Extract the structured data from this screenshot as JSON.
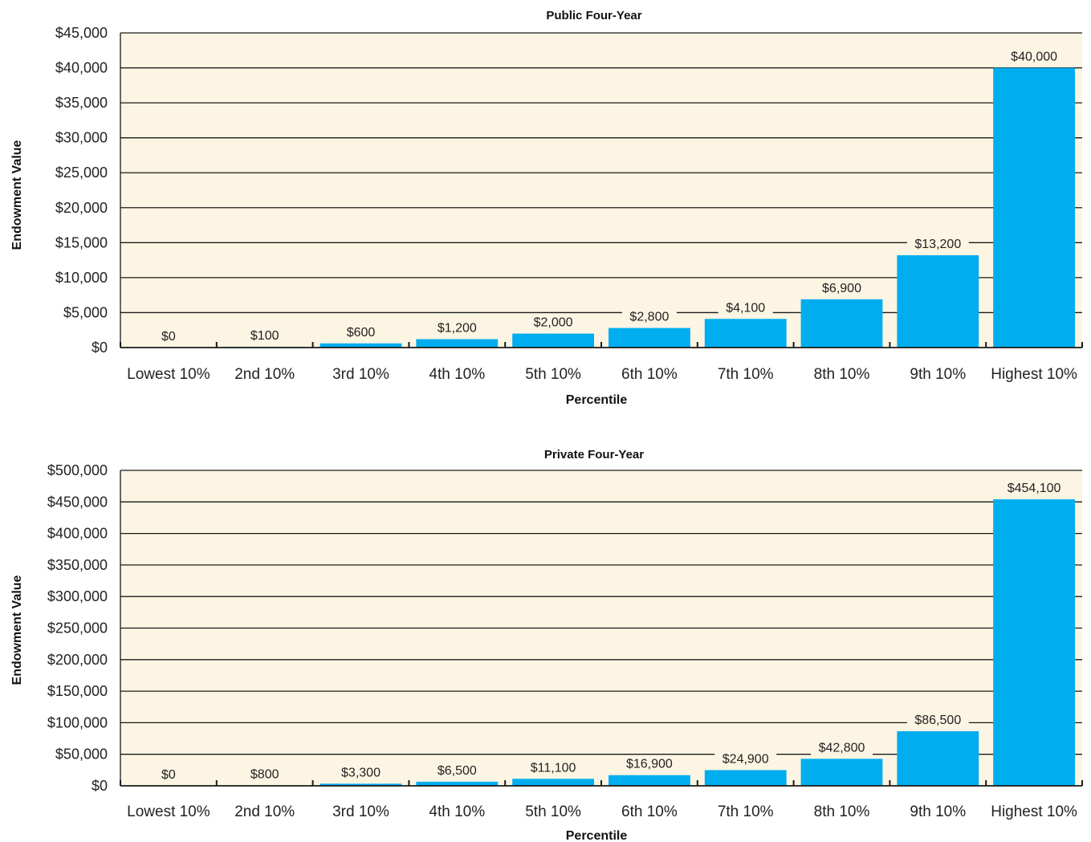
{
  "chart_data": [
    {
      "type": "bar",
      "title": "Public Four-Year",
      "xlabel": "Percentile",
      "ylabel": "Endowment Value",
      "categories": [
        "Lowest 10%",
        "2nd 10%",
        "3rd 10%",
        "4th 10%",
        "5th 10%",
        "6th 10%",
        "7th 10%",
        "8th 10%",
        "9th 10%",
        "Highest 10%"
      ],
      "values": [
        0,
        100,
        600,
        1200,
        2000,
        2800,
        4100,
        6900,
        13200,
        40000
      ],
      "data_labels": [
        "$0",
        "$100",
        "$600",
        "$1,200",
        "$2,000",
        "$2,800",
        "$4,100",
        "$6,900",
        "$13,200",
        "$40,000"
      ],
      "yticks": [
        "$0",
        "$5,000",
        "$10,000",
        "$15,000",
        "$20,000",
        "$25,000",
        "$30,000",
        "$35,000",
        "$40,000",
        "$45,000"
      ],
      "ylim": [
        0,
        45000
      ],
      "ystep": 5000,
      "grid": true,
      "legend": "none",
      "colors": {
        "bar": "#00aeef",
        "plot_bg": "#fdf5e3",
        "grid": "#1a1a1a"
      }
    },
    {
      "type": "bar",
      "title": "Private Four-Year",
      "xlabel": "Percentile",
      "ylabel": "Endowment Value",
      "categories": [
        "Lowest 10%",
        "2nd 10%",
        "3rd 10%",
        "4th 10%",
        "5th 10%",
        "6th 10%",
        "7th 10%",
        "8th 10%",
        "9th 10%",
        "Highest 10%"
      ],
      "values": [
        0,
        800,
        3300,
        6500,
        11100,
        16900,
        24900,
        42800,
        86500,
        454100
      ],
      "data_labels": [
        "$0",
        "$800",
        "$3,300",
        "$6,500",
        "$11,100",
        "$16,900",
        "$24,900",
        "$42,800",
        "$86,500",
        "$454,100"
      ],
      "yticks": [
        "$0",
        "$50,000",
        "$100,000",
        "$150,000",
        "$200,000",
        "$250,000",
        "$300,000",
        "$350,000",
        "$400,000",
        "$450,000",
        "$500,000"
      ],
      "ylim": [
        0,
        500000
      ],
      "ystep": 50000,
      "grid": true,
      "legend": "none",
      "colors": {
        "bar": "#00aeef",
        "plot_bg": "#fdf5e3",
        "grid": "#1a1a1a"
      }
    }
  ]
}
